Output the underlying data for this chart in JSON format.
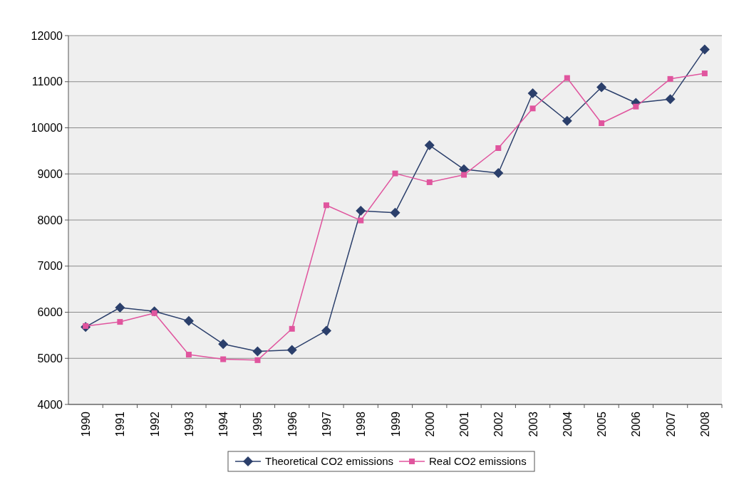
{
  "chart_data": {
    "type": "line",
    "categories": [
      "1990",
      "1991",
      "1992",
      "1993",
      "1994",
      "1995",
      "1996",
      "1997",
      "1998",
      "1999",
      "2000",
      "2001",
      "2002",
      "2003",
      "2004",
      "2005",
      "2006",
      "2007",
      "2008"
    ],
    "series": [
      {
        "name": "Theoretical CO2 emissions",
        "color": "#2b3f6b",
        "marker": "diamond",
        "values": [
          5680,
          6100,
          6020,
          5810,
          5310,
          5150,
          5180,
          5600,
          8200,
          8160,
          9620,
          9100,
          9020,
          10750,
          10150,
          10880,
          10540,
          10620,
          11700
        ]
      },
      {
        "name": "Real CO2 emissions",
        "color": "#e0559e",
        "marker": "square",
        "values": [
          5700,
          5790,
          5980,
          5080,
          4980,
          4960,
          5640,
          8320,
          7990,
          9010,
          8820,
          8980,
          9560,
          10420,
          11080,
          10100,
          10460,
          11060,
          11180
        ]
      }
    ],
    "ylim": [
      4000,
      12000
    ],
    "yticks": [
      4000,
      5000,
      6000,
      7000,
      8000,
      9000,
      10000,
      11000,
      12000
    ],
    "grid": "y",
    "legend": "bottom"
  }
}
